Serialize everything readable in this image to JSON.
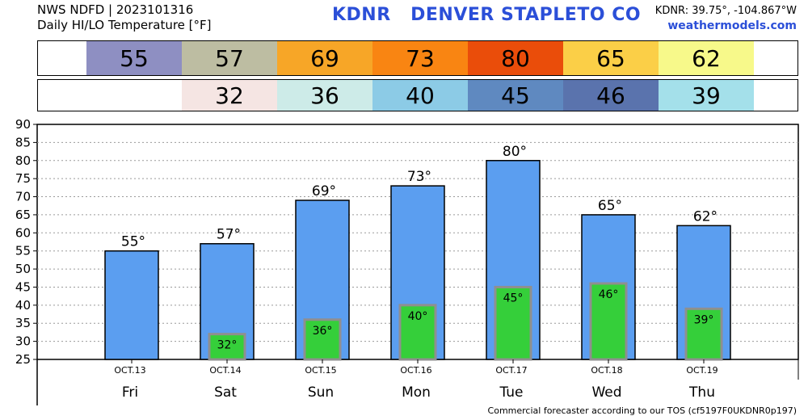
{
  "header": {
    "line1": "NWS NDFD | 2023101316",
    "line2": "Daily HI/LO Temperature [°F]",
    "title": "KDNR   DENVER STAPLETO CO",
    "coords": "KDNR: 39.75°, -104.867°W",
    "site": "weathermodels.com"
  },
  "hi_strip": [
    {
      "value": "55",
      "color": "#8e8fc2"
    },
    {
      "value": "57",
      "color": "#bdbda2"
    },
    {
      "value": "69",
      "color": "#f7a627"
    },
    {
      "value": "73",
      "color": "#f98512"
    },
    {
      "value": "80",
      "color": "#ea4d0a"
    },
    {
      "value": "65",
      "color": "#fbcf47"
    },
    {
      "value": "62",
      "color": "#f7f98a"
    }
  ],
  "lo_strip": [
    {
      "value": "",
      "color": "#ffffff"
    },
    {
      "value": "32",
      "color": "#f5e5e3"
    },
    {
      "value": "36",
      "color": "#cdebe8"
    },
    {
      "value": "40",
      "color": "#8ccbe6"
    },
    {
      "value": "45",
      "color": "#5f89c0"
    },
    {
      "value": "46",
      "color": "#5a73ad"
    },
    {
      "value": "39",
      "color": "#a4e0ea"
    }
  ],
  "chart_data": {
    "type": "bar",
    "categories": [
      "Fri",
      "Sat",
      "Sun",
      "Mon",
      "Tue",
      "Wed",
      "Thu"
    ],
    "dates": [
      "OCT.13",
      "OCT.14",
      "OCT.15",
      "OCT.16",
      "OCT.17",
      "OCT.18",
      "OCT.19"
    ],
    "series": [
      {
        "values": [
          55,
          57,
          69,
          73,
          80,
          65,
          62
        ],
        "color": "#5b9ef0"
      },
      {
        "values": [
          null,
          32,
          36,
          40,
          45,
          46,
          39
        ],
        "color": "#35cf3a"
      }
    ],
    "hi_labels": [
      "55°",
      "57°",
      "69°",
      "73°",
      "80°",
      "65°",
      "62°"
    ],
    "lo_labels": [
      "",
      "32°",
      "36°",
      "40°",
      "45°",
      "46°",
      "39°"
    ],
    "yticks": [
      "25",
      "30",
      "35",
      "40",
      "45",
      "50",
      "55",
      "60",
      "65",
      "70",
      "75",
      "80",
      "85",
      "90"
    ],
    "ylim": [
      25,
      90
    ],
    "grid": true
  },
  "footer": "Commercial forecaster according to our TOS (cf5197F0UKDNR0p197)"
}
